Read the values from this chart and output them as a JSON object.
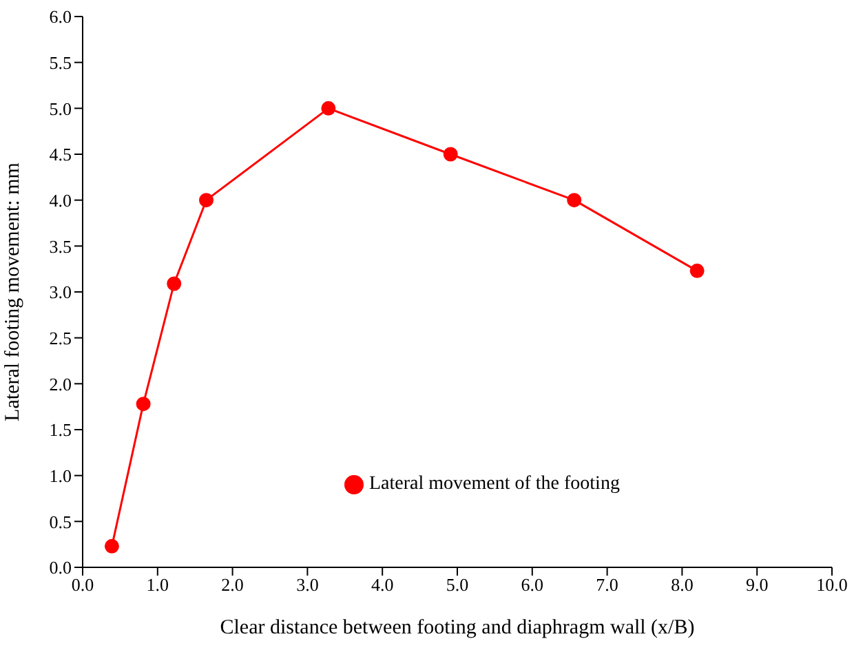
{
  "chart_data": {
    "type": "line",
    "xlabel": "Clear distance between footing and diaphragm wall (x/B)",
    "ylabel": "Lateral footing movement: mm",
    "x": [
      0.39,
      0.81,
      1.22,
      1.65,
      3.28,
      4.91,
      6.56,
      8.2
    ],
    "series": [
      {
        "name": "Lateral movement of the footing",
        "color": "#ff0000",
        "values": [
          0.23,
          1.78,
          3.09,
          4.0,
          5.0,
          4.5,
          4.0,
          3.23
        ]
      }
    ],
    "xlim": [
      0,
      10
    ],
    "xticks": [
      {
        "value": 0,
        "label": "0.0"
      },
      {
        "value": 1,
        "label": "1.0"
      },
      {
        "value": 2,
        "label": "2.0"
      },
      {
        "value": 3,
        "label": "3.0"
      },
      {
        "value": 4,
        "label": "4.0"
      },
      {
        "value": 5,
        "label": "5.0"
      },
      {
        "value": 6,
        "label": "6.0"
      },
      {
        "value": 7,
        "label": "7.0"
      },
      {
        "value": 8,
        "label": "8.0"
      },
      {
        "value": 9,
        "label": "9.0"
      },
      {
        "value": 10,
        "label": "10.0"
      }
    ],
    "ylim": [
      0,
      6
    ],
    "yticks": [
      {
        "value": 0,
        "label": "0.0"
      },
      {
        "value": 0.5,
        "label": "0.5"
      },
      {
        "value": 1,
        "label": "1.0"
      },
      {
        "value": 1.5,
        "label": "1.5"
      },
      {
        "value": 2,
        "label": "2.0"
      },
      {
        "value": 2.5,
        "label": "2.5"
      },
      {
        "value": 3,
        "label": "3.0"
      },
      {
        "value": 3.5,
        "label": "3.5"
      },
      {
        "value": 4,
        "label": "4.0"
      },
      {
        "value": 4.5,
        "label": "4.5"
      },
      {
        "value": 5,
        "label": "5.0"
      },
      {
        "value": 5.5,
        "label": "5.5"
      },
      {
        "value": 6,
        "label": "6.0"
      }
    ],
    "grid": false,
    "legend": "bottom",
    "marker": "circle",
    "line_style": "solid"
  }
}
